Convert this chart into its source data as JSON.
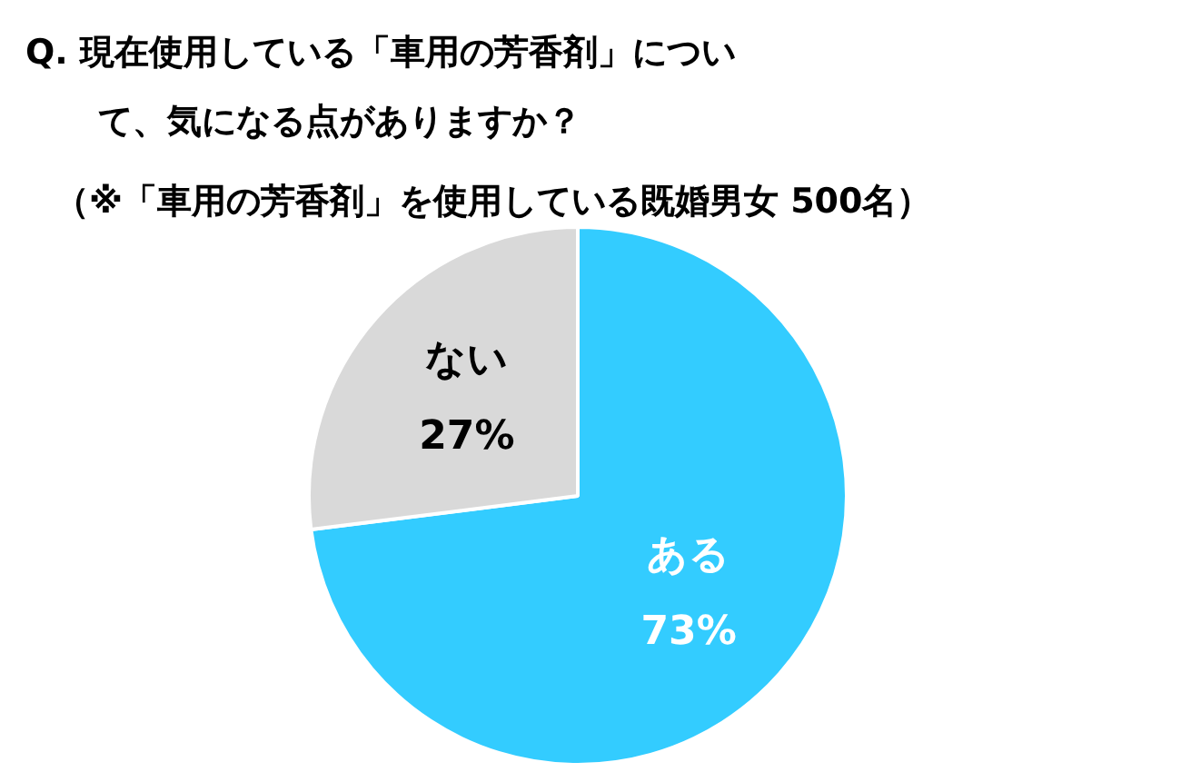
{
  "chart_data": {
    "type": "pie",
    "title": "Q. 現在使用している「車用の芳香剤」について、気になる点がありますか？",
    "subtitle": "（※「車用の芳香剤」を使用している既婚男女 500名）",
    "categories": [
      "ある",
      "ない"
    ],
    "values": [
      73,
      27
    ],
    "colors": [
      "#33ccff",
      "#d9d9d9"
    ],
    "value_labels": [
      "73%",
      "27%"
    ],
    "legend": false
  }
}
